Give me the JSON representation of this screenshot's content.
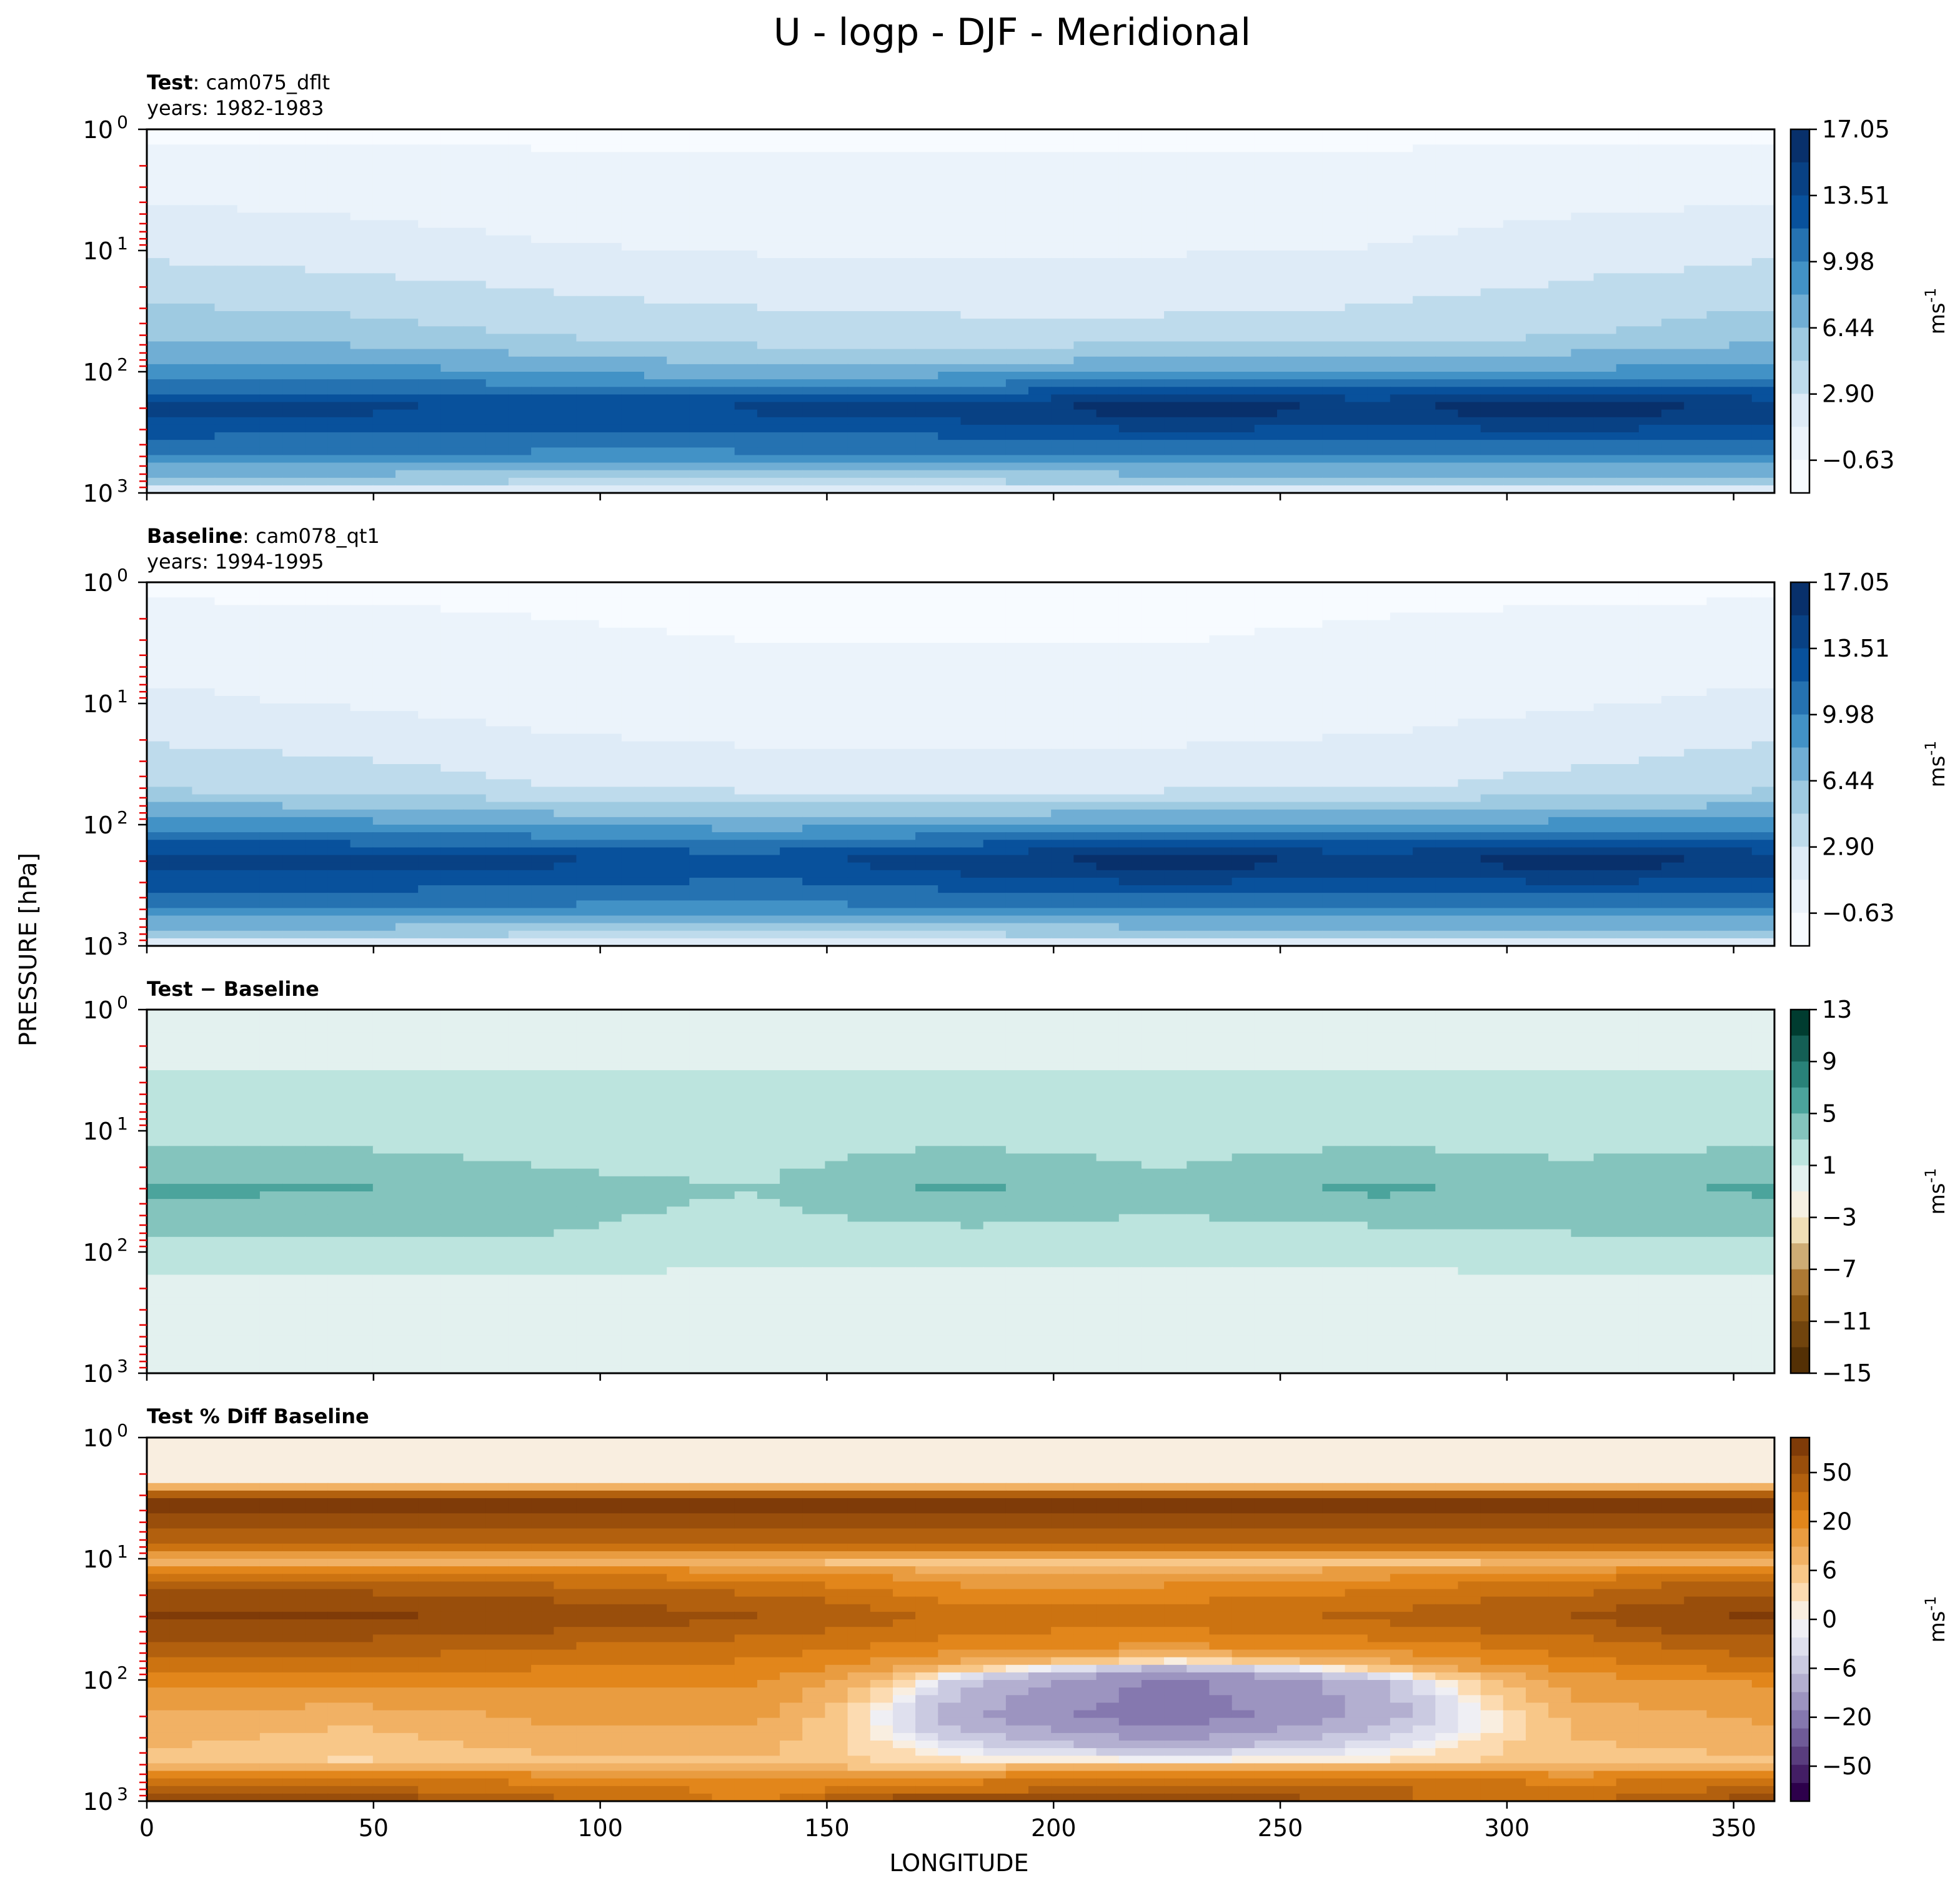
{
  "figure": {
    "title": "U - logp - DJF - Meridional",
    "ylabel": "PRESSURE [hPa]",
    "xlabel": "LONGITUDE"
  },
  "chart_data": [
    {
      "type": "heatmap",
      "panel": "test",
      "label_bold": "Test",
      "label_rest": ": cam075_dflt",
      "years": "years: 1982-1983",
      "x": [
        0,
        45,
        90,
        135,
        180,
        225,
        270,
        315,
        359
      ],
      "y": [
        1,
        10,
        50,
        100,
        200,
        500,
        850,
        1000
      ],
      "z": [
        [
          -1,
          -1,
          -1,
          -1,
          -1,
          -1,
          -1,
          -1,
          -1
        ],
        [
          2.5,
          2.0,
          1.3,
          1.0,
          1.0,
          1.0,
          1.2,
          2.0,
          2.5
        ],
        [
          6.0,
          5.5,
          4.5,
          3.8,
          3.5,
          3.5,
          3.8,
          4.6,
          5.8
        ],
        [
          9.0,
          9.0,
          8.0,
          7.0,
          7.5,
          8.0,
          8.0,
          8.5,
          9.0
        ],
        [
          14.2,
          14.0,
          13.5,
          14.0,
          15.0,
          16.5,
          15.5,
          16.5,
          15.0
        ],
        [
          10.0,
          10.0,
          9.5,
          9.5,
          9.5,
          10.0,
          10.0,
          10.0,
          10.0
        ],
        [
          4.5,
          4.5,
          4.0,
          4.0,
          4.0,
          4.5,
          4.5,
          4.5,
          4.5
        ],
        [
          0.5,
          0.5,
          0.0,
          0.0,
          0.0,
          0.5,
          0.5,
          0.5,
          0.5
        ]
      ],
      "xlim": [
        0,
        359
      ],
      "ylim": [
        1000,
        1
      ],
      "yscale": "log",
      "xticks": [
        0,
        50,
        100,
        150,
        200,
        250,
        300,
        350
      ],
      "yticks": [
        "10^0",
        "10^1",
        "10^2",
        "10^3"
      ],
      "colormap": "Blues",
      "levels_min": -2.4,
      "levels_max": 17.05,
      "colorbar_ticks": [
        "17.05",
        "13.51",
        "9.98",
        "6.44",
        "2.90",
        "−0.63"
      ],
      "colorbar_label": "ms^-1"
    },
    {
      "type": "heatmap",
      "panel": "baseline",
      "label_bold": "Baseline",
      "label_rest": ": cam078_qt1",
      "years": "years: 1994-1995",
      "x": [
        0,
        45,
        90,
        135,
        180,
        225,
        270,
        315,
        359
      ],
      "y": [
        1,
        10,
        50,
        100,
        200,
        500,
        850,
        1000
      ],
      "z": [
        [
          -1,
          -1,
          -1,
          -1,
          -1,
          -1,
          -1,
          -1,
          -1
        ],
        [
          1.5,
          1.0,
          0.2,
          -0.3,
          -0.3,
          -0.3,
          0.2,
          1.0,
          1.5
        ],
        [
          4.5,
          4.0,
          3.0,
          2.5,
          2.5,
          2.5,
          2.8,
          3.5,
          4.5
        ],
        [
          9.0,
          8.8,
          8.0,
          7.5,
          8.0,
          8.5,
          8.5,
          8.8,
          9.0
        ],
        [
          14.5,
          14.5,
          14.0,
          13.0,
          15.0,
          16.5,
          15.0,
          16.5,
          15.0
        ],
        [
          10.0,
          10.0,
          9.5,
          9.5,
          9.5,
          10.0,
          10.0,
          10.0,
          10.0
        ],
        [
          4.5,
          4.5,
          4.0,
          4.0,
          4.0,
          4.5,
          4.5,
          4.5,
          4.5
        ],
        [
          0.5,
          0.5,
          0.0,
          0.0,
          0.0,
          0.5,
          0.5,
          0.5,
          0.5
        ]
      ],
      "xlim": [
        0,
        359
      ],
      "ylim": [
        1000,
        1
      ],
      "yscale": "log",
      "xticks": [
        0,
        50,
        100,
        150,
        200,
        250,
        300,
        350
      ],
      "yticks": [
        "10^0",
        "10^1",
        "10^2",
        "10^3"
      ],
      "colormap": "Blues",
      "levels_min": -2.4,
      "levels_max": 17.05,
      "colorbar_ticks": [
        "17.05",
        "13.51",
        "9.98",
        "6.44",
        "2.90",
        "−0.63"
      ],
      "colorbar_label": "ms^-1"
    },
    {
      "type": "heatmap",
      "panel": "difference",
      "label_bold": "Test − Baseline",
      "label_rest": "",
      "years": "",
      "x": [
        0,
        45,
        90,
        135,
        180,
        225,
        270,
        315,
        359
      ],
      "y": [
        1,
        10,
        30,
        70,
        200,
        500,
        1000
      ],
      "z": [
        [
          0,
          0,
          0,
          0,
          0,
          0,
          0,
          0,
          0
        ],
        [
          2.0,
          2.0,
          2.0,
          2.0,
          2.0,
          2.0,
          2.0,
          2.0,
          2.0
        ],
        [
          5.5,
          5.2,
          3.5,
          3.0,
          5.5,
          3.5,
          5.5,
          4.0,
          5.5
        ],
        [
          3.0,
          3.0,
          3.0,
          2.5,
          2.5,
          2.5,
          2.5,
          3.0,
          3.0
        ],
        [
          0.2,
          0.2,
          0.2,
          0.2,
          0.2,
          0.2,
          0.2,
          0.2,
          0.2
        ],
        [
          0.0,
          0.0,
          0.0,
          0.0,
          0.0,
          0.0,
          0.0,
          0.0,
          0.0
        ],
        [
          0.0,
          0.0,
          0.0,
          0.0,
          0.0,
          0.0,
          0.0,
          0.0,
          0.0
        ]
      ],
      "xlim": [
        0,
        359
      ],
      "ylim": [
        1000,
        1
      ],
      "yscale": "log",
      "xticks": [
        0,
        50,
        100,
        150,
        200,
        250,
        300,
        350
      ],
      "yticks": [
        "10^0",
        "10^1",
        "10^2",
        "10^3"
      ],
      "colormap": "BrBG",
      "levels": [
        -15,
        -13,
        -11,
        -9,
        -7,
        -5,
        -3,
        -1,
        1,
        3,
        5,
        7,
        9,
        11,
        13
      ],
      "colorbar_ticks": [
        "13",
        "9",
        "5",
        "1",
        "−3",
        "−7",
        "−11",
        "−15"
      ],
      "colorbar_label": "ms^-1"
    },
    {
      "type": "heatmap",
      "panel": "percent-difference",
      "label_bold": "Test % Diff Baseline",
      "label_rest": "",
      "years": "",
      "x": [
        0,
        45,
        90,
        135,
        180,
        225,
        270,
        315,
        359
      ],
      "y": [
        1,
        2.5,
        3.5,
        10,
        30,
        50,
        100,
        200,
        500,
        800,
        1000
      ],
      "z": [
        [
          0,
          0,
          0,
          0,
          0,
          0,
          0,
          0,
          0
        ],
        [
          0,
          0,
          0,
          0,
          0,
          0,
          0,
          0,
          0
        ],
        [
          55,
          55,
          55,
          55,
          55,
          55,
          55,
          55,
          55
        ],
        [
          1,
          1,
          1,
          1,
          1,
          1,
          1,
          1,
          1
        ],
        [
          50,
          50,
          40,
          30,
          15,
          15,
          20,
          30,
          50
        ],
        [
          25,
          25,
          20,
          15,
          10,
          8,
          10,
          15,
          25
        ],
        [
          8,
          8,
          8,
          8,
          -2,
          -8,
          -3,
          6,
          8
        ],
        [
          4,
          3,
          5,
          5,
          -4,
          -10,
          -4,
          3,
          5
        ],
        [
          2,
          1,
          2,
          2,
          1,
          1,
          1,
          2,
          2
        ],
        [
          20,
          20,
          15,
          10,
          15,
          25,
          20,
          15,
          20
        ],
        [
          40,
          40,
          20,
          10,
          50,
          55,
          20,
          15,
          40
        ]
      ],
      "xlim": [
        0,
        359
      ],
      "ylim": [
        1000,
        1
      ],
      "yscale": "log",
      "xticks": [
        0,
        50,
        100,
        150,
        200,
        250,
        300,
        350
      ],
      "yticks": [
        "10^0",
        "10^1",
        "10^2",
        "10^3"
      ],
      "colormap": "PuOr",
      "colorbar_ticks": [
        "50",
        "20",
        "6",
        "0",
        "−6",
        "−20",
        "−50"
      ],
      "colorbar_label": "ms^-1"
    }
  ]
}
